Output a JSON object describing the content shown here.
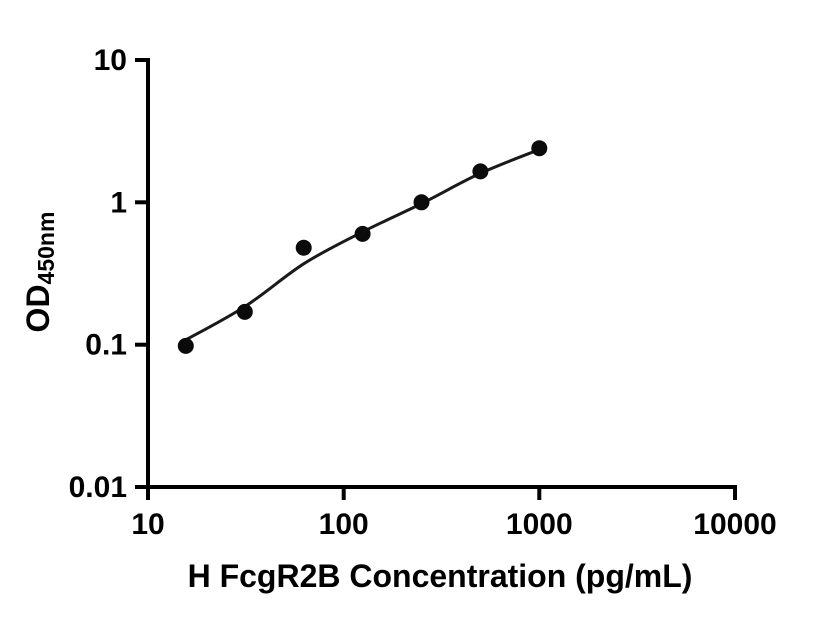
{
  "chart_data": {
    "type": "scatter",
    "title": "",
    "xlabel": "H FcgR2B Concentration (pg/mL)",
    "ylabel_base": "OD",
    "ylabel_sub": "450nm",
    "xscale": "log",
    "yscale": "log",
    "xlim": [
      10,
      10000
    ],
    "ylim": [
      0.01,
      10
    ],
    "x_ticks": [
      10,
      100,
      1000,
      10000
    ],
    "x_tick_labels": [
      "10",
      "100",
      "1000",
      "10000"
    ],
    "y_ticks": [
      0.01,
      0.1,
      1,
      10
    ],
    "y_tick_labels": [
      "0.01",
      "0.1",
      "1",
      "10"
    ],
    "x": [
      15.6,
      31.25,
      62.5,
      125,
      250,
      500,
      1000
    ],
    "y": [
      0.098,
      0.17,
      0.48,
      0.6,
      1.0,
      1.65,
      2.4
    ],
    "fit_curve": {
      "x": [
        15,
        31.25,
        62.5,
        125,
        250,
        500,
        1000
      ],
      "y": [
        0.105,
        0.185,
        0.37,
        0.62,
        0.98,
        1.6,
        2.35
      ]
    },
    "grid": false,
    "legend": null,
    "marker_color": "#0b0b0b",
    "line_color": "#1a1a1a",
    "axis_color": "#000000",
    "background": "#ffffff"
  }
}
